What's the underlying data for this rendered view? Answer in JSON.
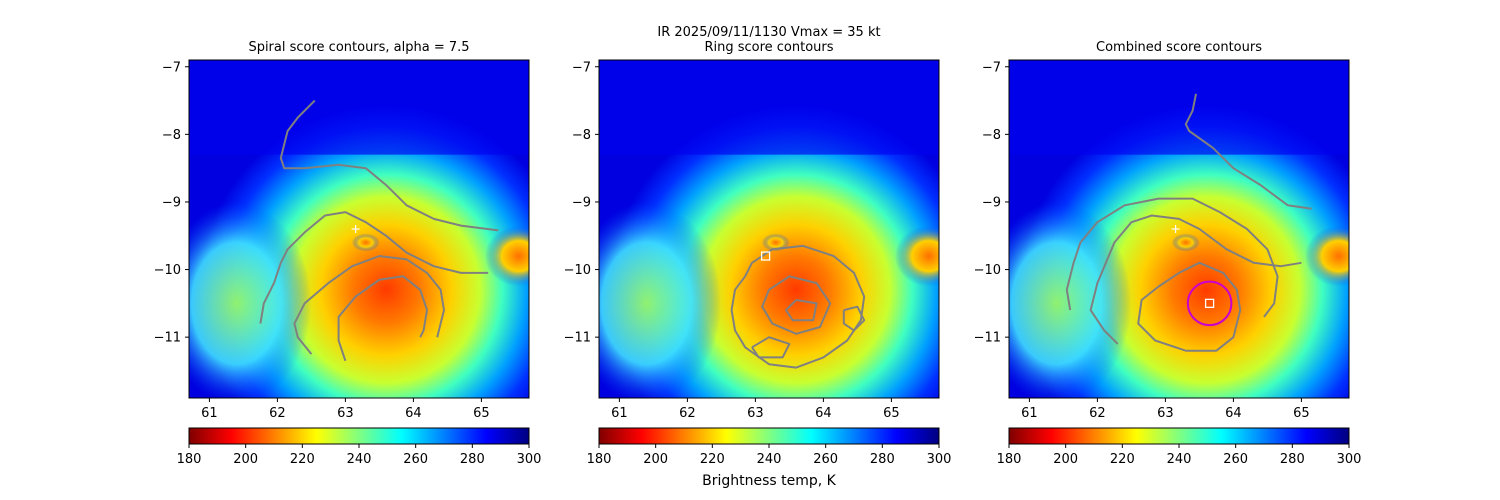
{
  "figure": {
    "suptitle_line1": "IR  2025/09/11/1130    Vmax = 35 kt",
    "colorbar_label": "Brightness temp, K"
  },
  "colormap": {
    "name": "jet_r",
    "range": [
      180,
      300
    ],
    "stops": [
      "#7f0000",
      "#ff0000",
      "#ff8000",
      "#ffff00",
      "#80ff80",
      "#00ffff",
      "#0080ff",
      "#0000ff",
      "#00007f"
    ]
  },
  "colors": {
    "contour": "#808080",
    "center_circle": "#cc00cc",
    "marker": "#ffffff"
  },
  "chart_data": [
    {
      "type": "heatmap",
      "title": "Spiral score contours, alpha =  7.5",
      "xlim": [
        60.7,
        65.7
      ],
      "ylim": [
        -11.9,
        -6.9
      ],
      "xticks": [
        "61",
        "62",
        "63",
        "64",
        "65"
      ],
      "yticks": [
        "−7",
        "−8",
        "−9",
        "−10",
        "−11"
      ],
      "colorbar_ticks": [
        "180",
        "200",
        "220",
        "240",
        "260",
        "280",
        "300"
      ],
      "cross_marker": [
        63.15,
        -9.4
      ],
      "contours": [
        [
          [
            62.55,
            -7.5
          ],
          [
            62.3,
            -7.75
          ],
          [
            62.15,
            -7.95
          ],
          [
            62.1,
            -8.15
          ],
          [
            62.05,
            -8.35
          ],
          [
            62.1,
            -8.5
          ],
          [
            62.4,
            -8.5
          ],
          [
            62.9,
            -8.45
          ],
          [
            63.3,
            -8.5
          ],
          [
            63.6,
            -8.75
          ],
          [
            63.9,
            -9.05
          ],
          [
            64.3,
            -9.25
          ],
          [
            64.7,
            -9.35
          ],
          [
            65.25,
            -9.42
          ]
        ],
        [
          [
            61.75,
            -10.8
          ],
          [
            61.8,
            -10.5
          ],
          [
            61.95,
            -10.2
          ],
          [
            62.05,
            -9.9
          ],
          [
            62.15,
            -9.7
          ],
          [
            62.4,
            -9.45
          ],
          [
            62.7,
            -9.2
          ],
          [
            63.0,
            -9.15
          ],
          [
            63.3,
            -9.3
          ],
          [
            63.6,
            -9.5
          ],
          [
            63.9,
            -9.75
          ],
          [
            64.3,
            -9.95
          ],
          [
            64.7,
            -10.05
          ],
          [
            65.1,
            -10.05
          ]
        ],
        [
          [
            62.5,
            -11.25
          ],
          [
            62.3,
            -11.0
          ],
          [
            62.25,
            -10.8
          ],
          [
            62.4,
            -10.5
          ],
          [
            62.75,
            -10.2
          ],
          [
            63.1,
            -9.95
          ],
          [
            63.5,
            -9.8
          ],
          [
            63.9,
            -9.85
          ],
          [
            64.2,
            -10.05
          ],
          [
            64.4,
            -10.3
          ],
          [
            64.45,
            -10.6
          ],
          [
            64.4,
            -10.8
          ],
          [
            64.35,
            -11.0
          ]
        ],
        [
          [
            63.0,
            -11.35
          ],
          [
            62.9,
            -11.05
          ],
          [
            62.9,
            -10.7
          ],
          [
            63.15,
            -10.4
          ],
          [
            63.5,
            -10.15
          ],
          [
            63.85,
            -10.1
          ],
          [
            64.1,
            -10.3
          ],
          [
            64.2,
            -10.6
          ],
          [
            64.15,
            -10.9
          ],
          [
            64.1,
            -11.0
          ]
        ]
      ]
    },
    {
      "type": "heatmap",
      "title": "Ring score contours",
      "xlim": [
        60.7,
        65.7
      ],
      "ylim": [
        -11.9,
        -6.9
      ],
      "xticks": [
        "61",
        "62",
        "63",
        "64",
        "65"
      ],
      "yticks": [
        "−7",
        "−8",
        "−9",
        "−10",
        "−11"
      ],
      "colorbar_ticks": [
        "180",
        "200",
        "220",
        "240",
        "260",
        "280",
        "300"
      ],
      "square_marker": [
        63.15,
        -9.8
      ],
      "contours": [
        [
          [
            62.85,
            -10.1
          ],
          [
            62.7,
            -10.3
          ],
          [
            62.65,
            -10.6
          ],
          [
            62.7,
            -10.9
          ],
          [
            62.85,
            -11.15
          ],
          [
            63.2,
            -11.4
          ],
          [
            63.6,
            -11.45
          ],
          [
            64.0,
            -11.3
          ],
          [
            64.35,
            -11.05
          ],
          [
            64.55,
            -10.75
          ],
          [
            64.6,
            -10.4
          ],
          [
            64.45,
            -10.05
          ],
          [
            64.15,
            -9.8
          ],
          [
            63.7,
            -9.65
          ],
          [
            63.25,
            -9.7
          ],
          [
            62.95,
            -9.9
          ],
          [
            62.85,
            -10.1
          ]
        ],
        [
          [
            63.2,
            -10.3
          ],
          [
            63.5,
            -10.1
          ],
          [
            63.9,
            -10.2
          ],
          [
            64.1,
            -10.5
          ],
          [
            63.95,
            -10.85
          ],
          [
            63.6,
            -10.95
          ],
          [
            63.25,
            -10.8
          ],
          [
            63.1,
            -10.55
          ],
          [
            63.2,
            -10.3
          ]
        ],
        [
          [
            63.6,
            -10.45
          ],
          [
            63.9,
            -10.5
          ],
          [
            63.85,
            -10.75
          ],
          [
            63.55,
            -10.75
          ],
          [
            63.45,
            -10.6
          ],
          [
            63.6,
            -10.45
          ]
        ],
        [
          [
            62.95,
            -11.15
          ],
          [
            63.2,
            -11.0
          ],
          [
            63.5,
            -11.1
          ],
          [
            63.4,
            -11.3
          ],
          [
            63.05,
            -11.3
          ],
          [
            62.95,
            -11.15
          ]
        ],
        [
          [
            64.3,
            -10.6
          ],
          [
            64.5,
            -10.55
          ],
          [
            64.6,
            -10.75
          ],
          [
            64.45,
            -10.9
          ],
          [
            64.3,
            -10.8
          ],
          [
            64.3,
            -10.6
          ]
        ]
      ]
    },
    {
      "type": "heatmap",
      "title": "Combined score contours",
      "xlim": [
        60.7,
        65.7
      ],
      "ylim": [
        -11.9,
        -6.9
      ],
      "xticks": [
        "61",
        "62",
        "63",
        "64",
        "65"
      ],
      "yticks": [
        "−7",
        "−8",
        "−9",
        "−10",
        "−11"
      ],
      "colorbar_ticks": [
        "180",
        "200",
        "220",
        "240",
        "260",
        "280",
        "300"
      ],
      "cross_marker": [
        63.15,
        -9.4
      ],
      "square_marker": [
        63.65,
        -10.5
      ],
      "contours": [
        [
          [
            63.45,
            -7.4
          ],
          [
            63.4,
            -7.65
          ],
          [
            63.3,
            -7.85
          ],
          [
            63.35,
            -7.95
          ],
          [
            63.7,
            -8.2
          ],
          [
            64.0,
            -8.5
          ],
          [
            64.4,
            -8.75
          ],
          [
            64.8,
            -9.05
          ],
          [
            65.15,
            -9.1
          ]
        ],
        [
          [
            62.3,
            -11.1
          ],
          [
            62.1,
            -10.9
          ],
          [
            61.9,
            -10.6
          ],
          [
            62.0,
            -10.2
          ],
          [
            62.25,
            -9.6
          ],
          [
            62.5,
            -9.3
          ],
          [
            62.8,
            -9.2
          ],
          [
            63.2,
            -9.25
          ],
          [
            63.5,
            -9.4
          ],
          [
            63.9,
            -9.7
          ],
          [
            64.3,
            -9.9
          ],
          [
            64.7,
            -9.95
          ],
          [
            65.0,
            -9.9
          ]
        ],
        [
          [
            61.6,
            -10.6
          ],
          [
            61.55,
            -10.3
          ],
          [
            61.65,
            -9.9
          ],
          [
            61.75,
            -9.6
          ],
          [
            62.0,
            -9.3
          ],
          [
            62.4,
            -9.05
          ],
          [
            62.9,
            -8.95
          ],
          [
            63.4,
            -8.95
          ],
          [
            63.8,
            -9.15
          ],
          [
            64.2,
            -9.4
          ],
          [
            64.5,
            -9.7
          ],
          [
            64.65,
            -10.1
          ],
          [
            64.6,
            -10.5
          ],
          [
            64.45,
            -10.7
          ]
        ],
        [
          [
            63.2,
            -10.05
          ],
          [
            62.9,
            -10.25
          ],
          [
            62.65,
            -10.45
          ],
          [
            62.6,
            -10.8
          ],
          [
            62.85,
            -11.05
          ],
          [
            63.3,
            -11.2
          ],
          [
            63.75,
            -11.2
          ],
          [
            64.0,
            -11.0
          ],
          [
            64.1,
            -10.6
          ],
          [
            64.05,
            -10.3
          ],
          [
            63.85,
            -10.05
          ],
          [
            63.5,
            -9.9
          ],
          [
            63.2,
            -10.05
          ]
        ]
      ],
      "circle": {
        "center": [
          63.65,
          -10.5
        ],
        "radius_deg": 0.32
      }
    }
  ]
}
